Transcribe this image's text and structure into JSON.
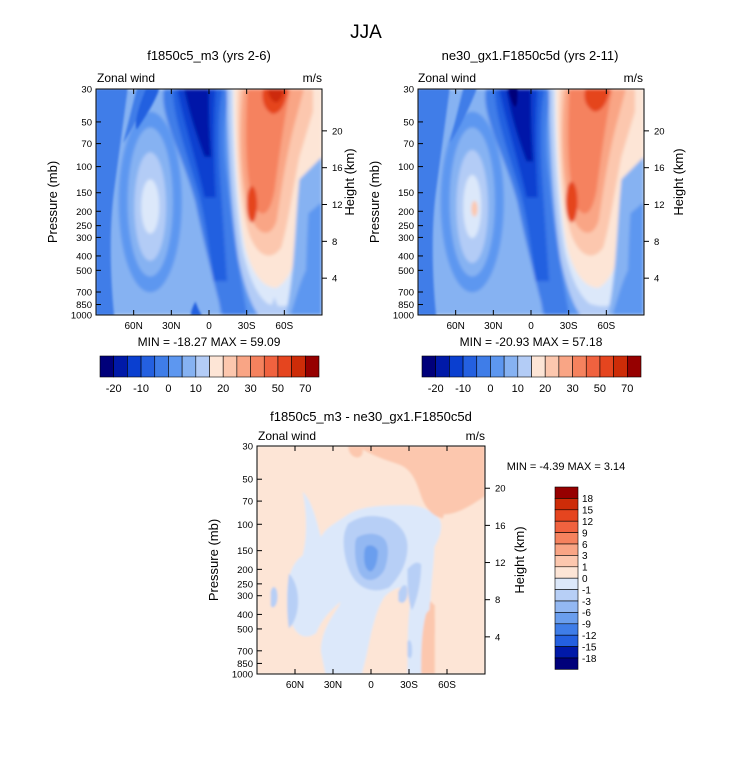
{
  "figure_title": "JJA",
  "chart_data": [
    {
      "type": "heatmap",
      "title": "f1850c5_m3 (yrs 2-6)",
      "field_label": "Zonal wind",
      "units": "m/s",
      "xlabel": "",
      "ylabel": "Pressure (mb)",
      "y2label": "Height (km)",
      "xticks": [
        "60N",
        "30N",
        "0",
        "30S",
        "60S"
      ],
      "yticks": [
        "30",
        "50",
        "70",
        "100",
        "150",
        "200",
        "250",
        "300",
        "400",
        "500",
        "700",
        "850",
        "1000"
      ],
      "y2ticks": [
        "20",
        "16",
        "12",
        "8",
        "4"
      ],
      "stats": "MIN = -18.27  MAX =  59.09",
      "colorbar_labels": [
        "-20",
        "-10",
        "0",
        "10",
        "20",
        "30",
        "50",
        "70"
      ],
      "contour_levels": [
        -25,
        -20,
        -15,
        -10,
        -5,
        0,
        5,
        10,
        15,
        20,
        25,
        30,
        40,
        50,
        60,
        70
      ]
    },
    {
      "type": "heatmap",
      "title": "ne30_gx1.F1850c5d (yrs 2-11)",
      "field_label": "Zonal wind",
      "units": "m/s",
      "xlabel": "",
      "ylabel": "Pressure (mb)",
      "y2label": "Height (km)",
      "xticks": [
        "60N",
        "30N",
        "0",
        "30S",
        "60S"
      ],
      "yticks": [
        "30",
        "50",
        "70",
        "100",
        "150",
        "200",
        "250",
        "300",
        "400",
        "500",
        "700",
        "850",
        "1000"
      ],
      "y2ticks": [
        "20",
        "16",
        "12",
        "8",
        "4"
      ],
      "stats": "MIN = -20.93  MAX =  57.18",
      "colorbar_labels": [
        "-20",
        "-10",
        "0",
        "10",
        "20",
        "30",
        "50",
        "70"
      ],
      "contour_levels": [
        -25,
        -20,
        -15,
        -10,
        -5,
        0,
        5,
        10,
        15,
        20,
        25,
        30,
        40,
        50,
        60,
        70
      ]
    },
    {
      "type": "heatmap",
      "title": "f1850c5_m3 - ne30_gx1.F1850c5d",
      "field_label": "Zonal wind",
      "units": "m/s",
      "xlabel": "",
      "ylabel": "Pressure (mb)",
      "y2label": "Height (km)",
      "xticks": [
        "60N",
        "30N",
        "0",
        "30S",
        "60S"
      ],
      "yticks": [
        "30",
        "50",
        "70",
        "100",
        "150",
        "200",
        "250",
        "300",
        "400",
        "500",
        "700",
        "850",
        "1000"
      ],
      "y2ticks": [
        "20",
        "16",
        "12",
        "8",
        "4"
      ],
      "stats": "MIN =  -4.39  MAX =   3.14",
      "colorbar_labels": [
        "18",
        "15",
        "12",
        "9",
        "6",
        "3",
        "1",
        "0",
        "-1",
        "-3",
        "-6",
        "-9",
        "-12",
        "-15",
        "-18"
      ]
    }
  ],
  "colors": {
    "cool": [
      "#00007a",
      "#0019a8",
      "#0a3fd0",
      "#2460e0",
      "#3f7de8",
      "#5d97f0",
      "#86b2f2",
      "#b3ccf6",
      "#dce8fa"
    ],
    "warm": [
      "#fde5d6",
      "#fcc7ae",
      "#f9a585",
      "#f5825e",
      "#f0623f",
      "#e5451f",
      "#cd2c08",
      "#960000"
    ],
    "diff_cool": [
      "#00007a",
      "#0019a8",
      "#0a3fd0",
      "#2460e0",
      "#3f7de8",
      "#6a9eee",
      "#93b8f2",
      "#b7cff6",
      "#dce8fa"
    ],
    "diff_warm": [
      "#fde5d6",
      "#fcc7ae",
      "#f9a585",
      "#f5825e",
      "#f0623f",
      "#e5451f",
      "#cd2c08",
      "#960000"
    ]
  }
}
